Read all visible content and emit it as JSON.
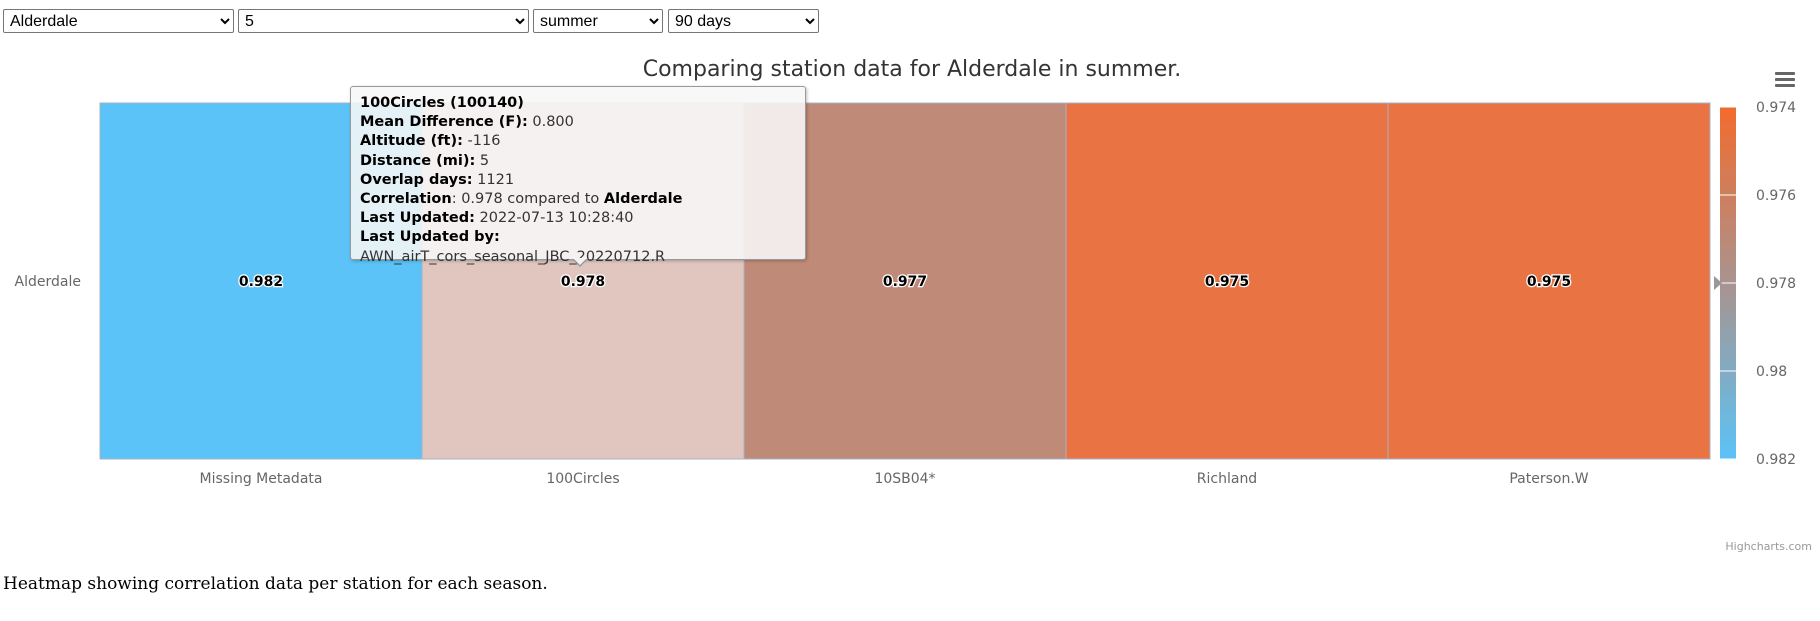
{
  "controls": {
    "station": "Alderdale",
    "count": "5",
    "season": "summer",
    "window": "90 days"
  },
  "chart_data": {
    "type": "heatmap",
    "title": "Comparing station data for Alderdale in summer.",
    "y_categories": [
      "Alderdale"
    ],
    "x_categories": [
      "Missing Metadata",
      "100Circles",
      "10SB04*",
      "Richland",
      "Paterson.W"
    ],
    "values": [
      0.982,
      0.978,
      0.977,
      0.975,
      0.975
    ],
    "value_labels": [
      "0.982",
      "0.978",
      "0.977",
      "0.975",
      "0.975"
    ],
    "colors": [
      "#5bc3f7",
      "#e0c6bf",
      "#c08a78",
      "#ea7343",
      "#ea7343"
    ],
    "colorAxis": {
      "min": 0.974,
      "max": 0.982,
      "tick_labels": [
        "0.974",
        "0.976",
        "0.978",
        "0.98",
        "0.982"
      ],
      "min_color": "#5bc3f7",
      "max_color": "#f26b2e",
      "orientation": "vertical",
      "marker_value": 0.978
    },
    "tooltip": {
      "header": "100Circles (100140)",
      "rows": [
        {
          "label": "Mean Difference (F)",
          "value": "0.800"
        },
        {
          "label": "Altitude (ft)",
          "value": "-116"
        },
        {
          "label": "Distance (mi)",
          "value": "5"
        },
        {
          "label": "Overlap days",
          "value": "1121"
        }
      ],
      "correlation_label": "Correlation",
      "correlation_value": "0.978 compared to",
      "correlation_station": "Alderdale",
      "updated_label": "Last Updated",
      "updated_value": "2022-07-13 10:28:40",
      "updated_by_label": "Last Updated by",
      "updated_by_value": "AWN_airT_cors_seasonal_JBC_20220712.R"
    },
    "credits": "Highcharts.com"
  },
  "caption": "Heatmap showing correlation data per station for each season."
}
